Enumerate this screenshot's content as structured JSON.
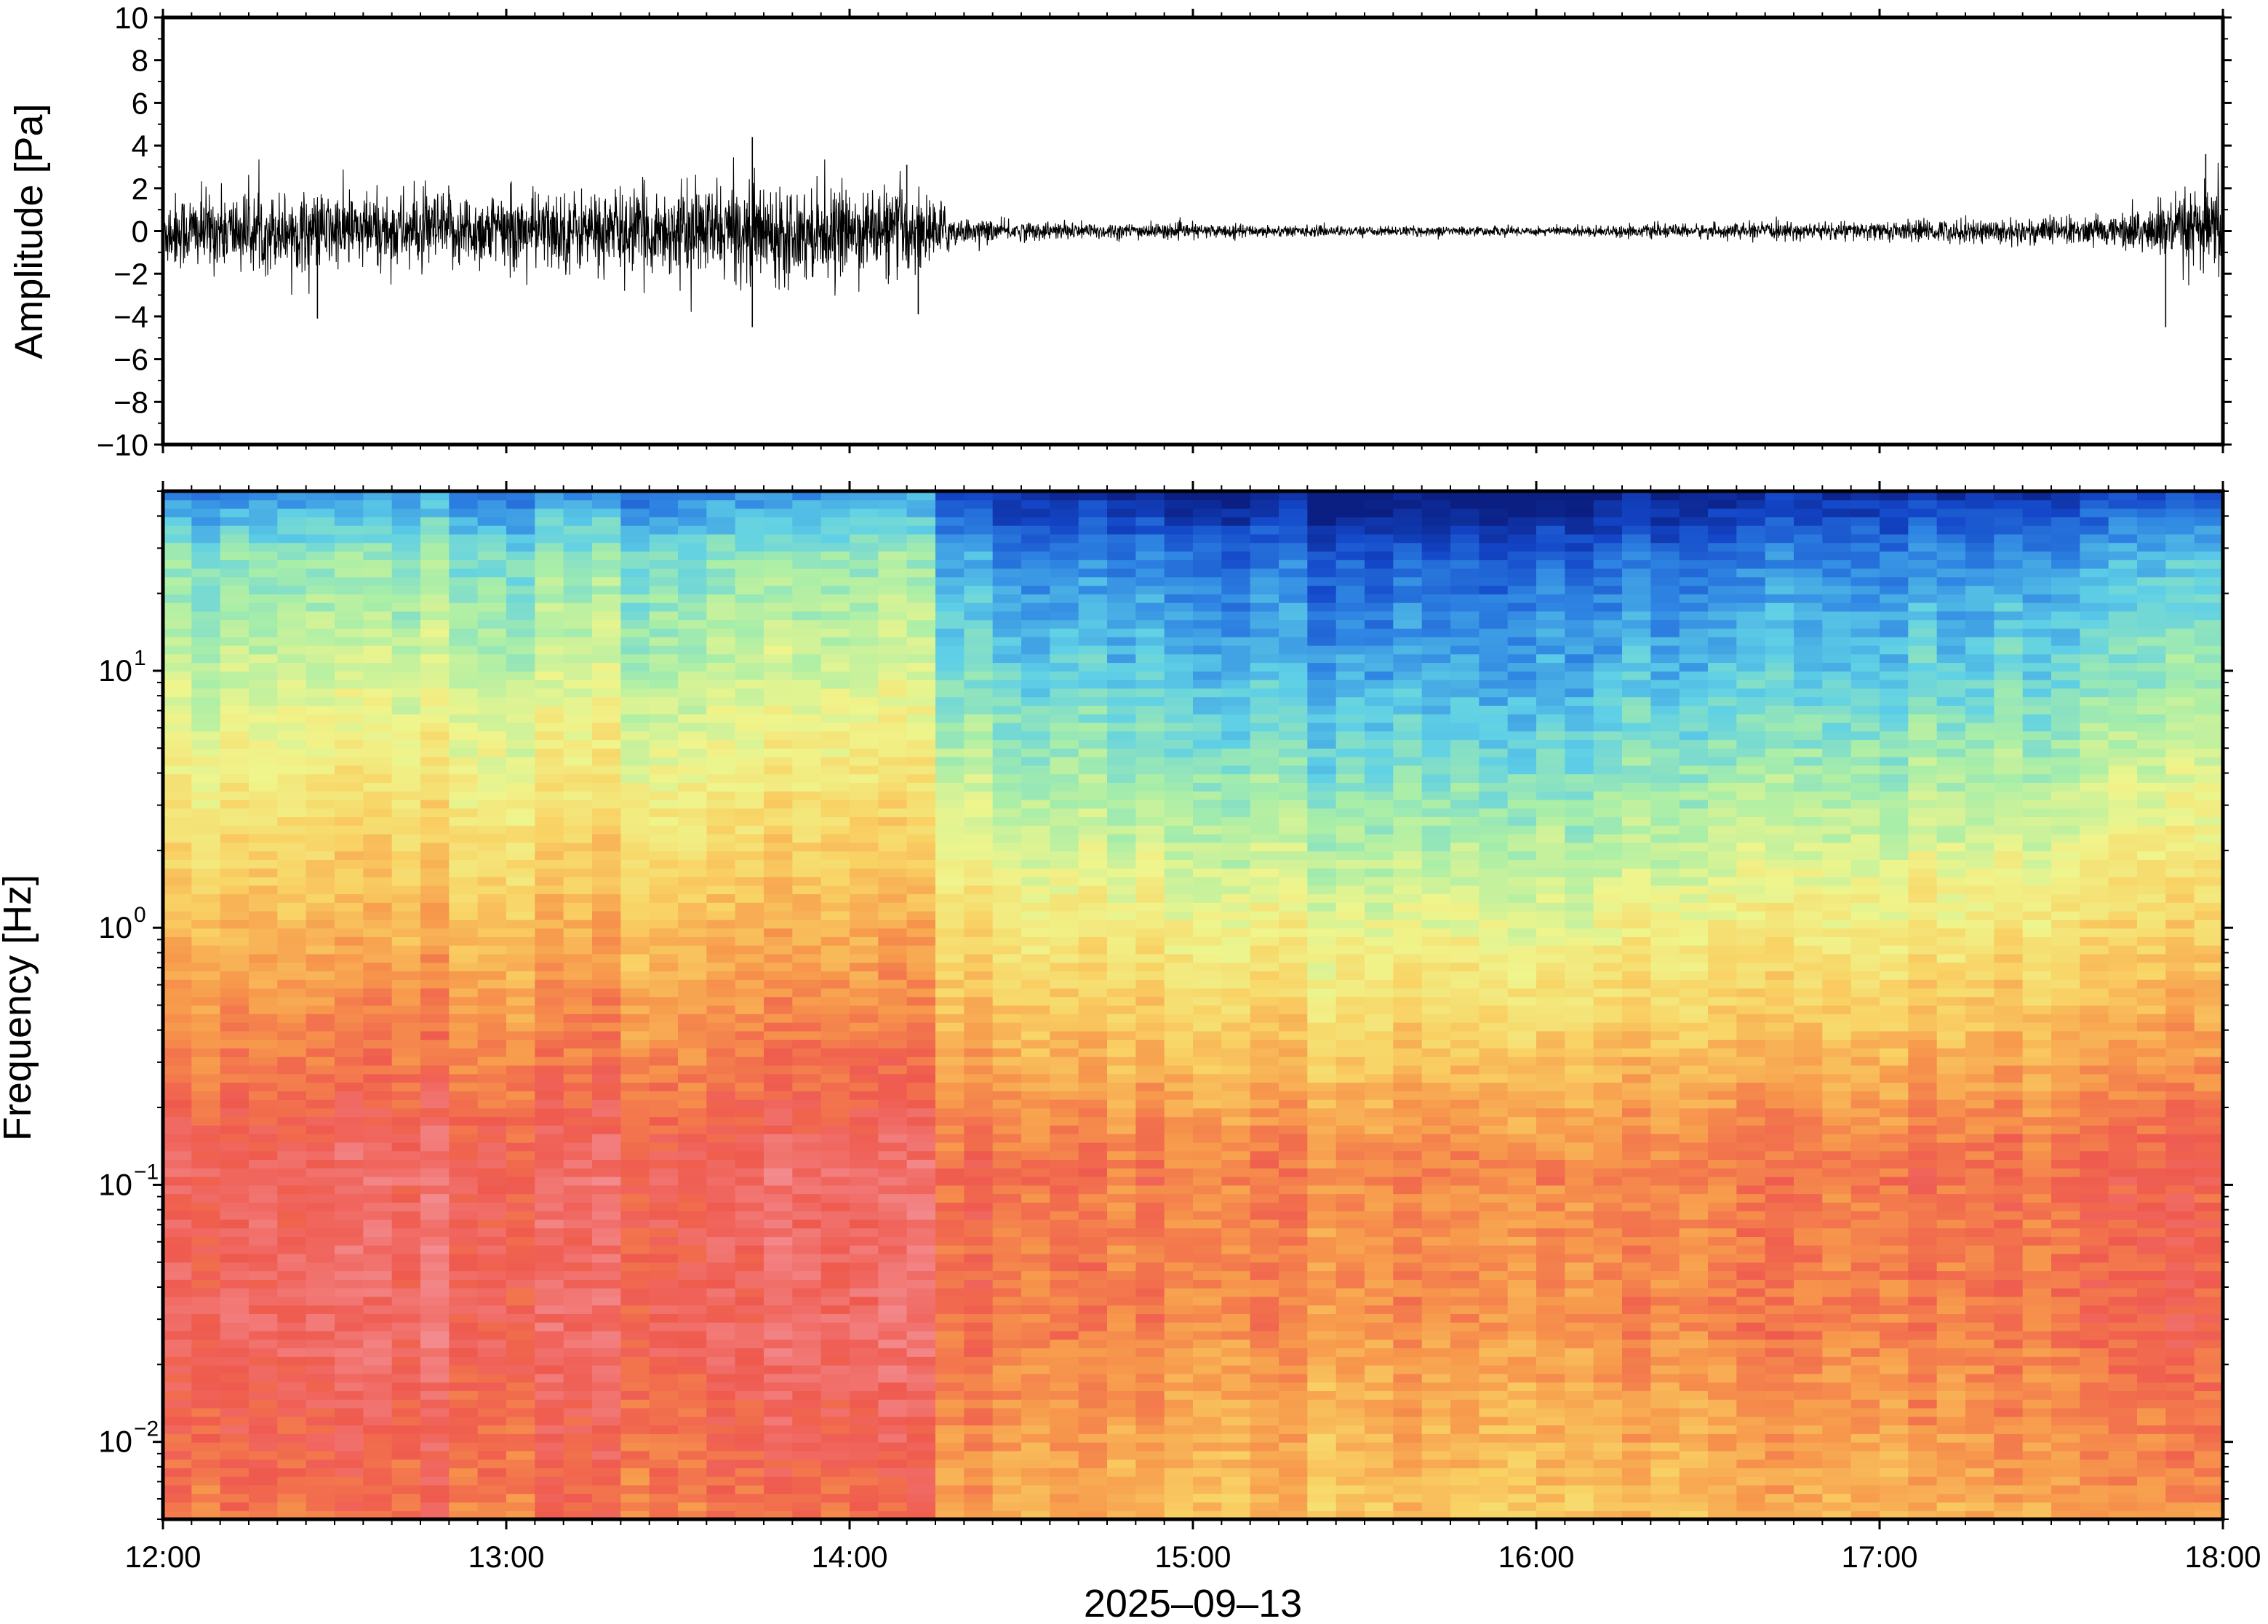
{
  "chart_data": [
    {
      "type": "line",
      "ylabel": "Amplitude [Pa]",
      "ylim": [
        -10,
        10
      ],
      "yticks": [
        -10,
        -8,
        -6,
        -4,
        -2,
        0,
        2,
        4,
        6,
        8,
        10
      ],
      "ytick_labels": [
        "−10",
        "−8",
        "−6",
        "−4",
        "−2",
        "0",
        "2",
        "4",
        "6",
        "8",
        "10"
      ],
      "xlim": [
        "2025-09-13 12:00",
        "2025-09-13 18:00"
      ],
      "series": [
        {
          "color": "#000000",
          "envelope_time": [
            "12:00",
            "12:30",
            "13:00",
            "13:30",
            "13:45",
            "14:00",
            "14:10",
            "14:14",
            "14:20",
            "14:30",
            "15:00",
            "15:30",
            "16:00",
            "16:30",
            "17:00",
            "17:15",
            "17:30",
            "17:40",
            "17:50",
            "18:00"
          ],
          "envelope_amplitude": [
            1.6,
            1.6,
            1.6,
            1.8,
            2.0,
            1.7,
            1.8,
            1.5,
            0.5,
            0.4,
            0.3,
            0.2,
            0.2,
            0.3,
            0.4,
            0.5,
            0.6,
            0.6,
            1.3,
            1.9
          ],
          "spikes": [
            {
              "time": "13:43",
              "value": 4.4
            },
            {
              "time": "13:43",
              "value": -4.5
            },
            {
              "time": "14:10",
              "value": 3.1
            },
            {
              "time": "14:12",
              "value": -3.9
            },
            {
              "time": "12:27",
              "value": -4.1
            },
            {
              "time": "17:50",
              "value": -4.5
            },
            {
              "time": "17:57",
              "value": 3.6
            }
          ]
        }
      ]
    },
    {
      "type": "heatmap",
      "ylabel": "Frequency [Hz]",
      "xlabel": "2025–09–13",
      "y_scale": "log",
      "ylim": [
        0.005,
        50
      ],
      "yticks": [
        0.01,
        0.1,
        1,
        10
      ],
      "ytick_labels": [
        {
          "base": "10",
          "exp": "−2"
        },
        {
          "base": "10",
          "exp": "−1"
        },
        {
          "base": "10",
          "exp": "0"
        },
        {
          "base": "10",
          "exp": "1"
        }
      ],
      "xticks": [
        "12:00",
        "13:00",
        "14:00",
        "15:00",
        "16:00",
        "17:00",
        "18:00"
      ],
      "colormap": [
        "#0b1f82",
        "#1346c8",
        "#2f86e3",
        "#5fd0e6",
        "#a9eea8",
        "#eff58c",
        "#f9d264",
        "#f79a4c",
        "#ef5a4e",
        "#f38b8e"
      ],
      "description_keys": {
        "low_power": "#0b1f82",
        "high_power": "#f38b8e"
      },
      "power_profile": {
        "time": [
          "12:00",
          "13:00",
          "14:00",
          "14:14",
          "14:20",
          "15:00",
          "15:55",
          "16:00",
          "17:00",
          "17:40",
          "18:00"
        ],
        "level": [
          1.0,
          1.0,
          1.0,
          1.0,
          0.55,
          0.45,
          0.2,
          0.35,
          0.5,
          0.6,
          0.9
        ]
      }
    }
  ]
}
